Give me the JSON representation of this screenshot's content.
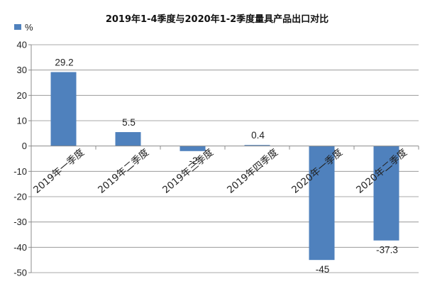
{
  "chart_data": {
    "type": "bar",
    "title": "2019年1-4季度与2020年1-2季度量具产品出口对比",
    "legend": {
      "name": "%",
      "position": "top-left"
    },
    "categories": [
      "2019年一季度",
      "2019年二季度",
      "2019年三季度",
      "2019年四季度",
      "2020年一季度",
      "2020年二季度"
    ],
    "series": [
      {
        "name": "%",
        "values": [
          29.2,
          5.5,
          -2,
          0.4,
          -45,
          -37.3
        ],
        "labels": [
          "29.2",
          "5.5",
          "-2",
          "0.4",
          "-45",
          "-37.3"
        ]
      }
    ],
    "yticks": [
      "40",
      "30",
      "20",
      "10",
      "0",
      "-10",
      "-20",
      "-30",
      "-40",
      "-50"
    ],
    "ylim": [
      -50,
      40
    ],
    "grid": true,
    "colors": {
      "bar": "#4f81bd",
      "grid": "#8c8c8c",
      "axis": "#8c8c8c"
    }
  }
}
